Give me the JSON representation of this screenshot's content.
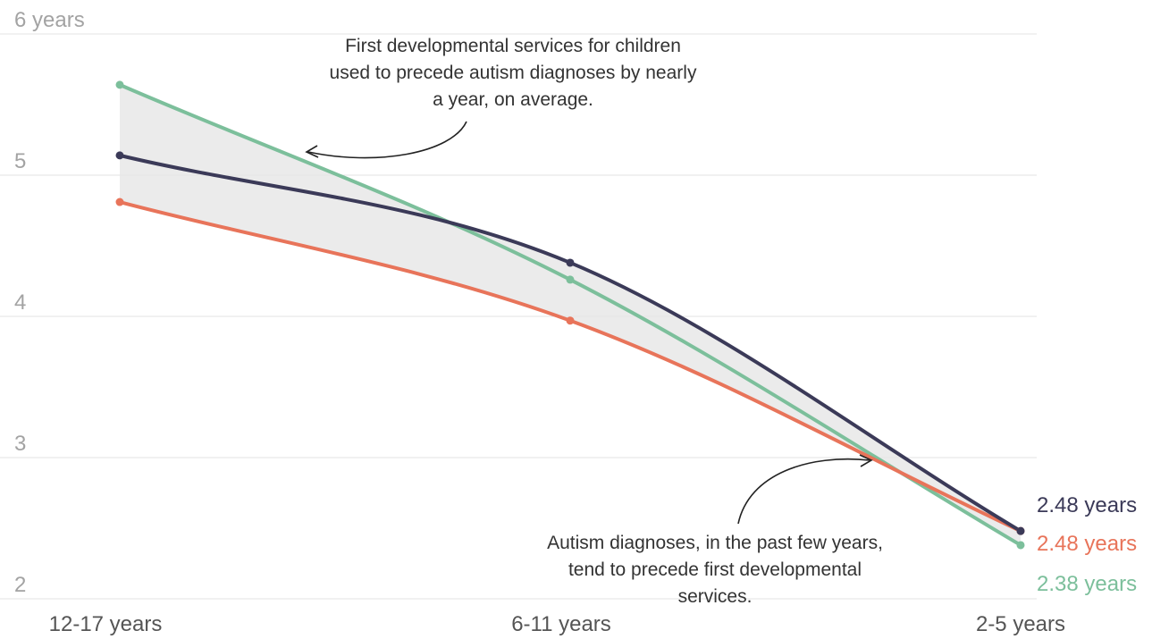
{
  "chart_data": {
    "type": "line",
    "categories": [
      "12-17 years",
      "6-11 years",
      "2-5 years"
    ],
    "y_ticks": [
      "6 years",
      "5",
      "4",
      "3",
      "2"
    ],
    "ylim": [
      2,
      6
    ],
    "grid": true,
    "series": [
      {
        "key": "navy",
        "color": "#3b3a58",
        "values": [
          5.14,
          4.38,
          2.48
        ],
        "end_label": "2.48 years"
      },
      {
        "key": "orange",
        "color": "#e8745a",
        "values": [
          4.81,
          3.97,
          2.48
        ],
        "end_label": "2.48 years"
      },
      {
        "key": "green",
        "color": "#7cbf9b",
        "values": [
          5.64,
          4.26,
          2.38
        ],
        "end_label": "2.38 years"
      }
    ],
    "annotations": [
      {
        "key": "top",
        "lines": [
          "First developmental services for children",
          "used to precede autism diagnoses by nearly",
          "a year, on average."
        ]
      },
      {
        "key": "bottom",
        "lines": [
          "Autism diagnoses, in the past few years,",
          "tend to precede first developmental",
          "services."
        ]
      }
    ]
  }
}
